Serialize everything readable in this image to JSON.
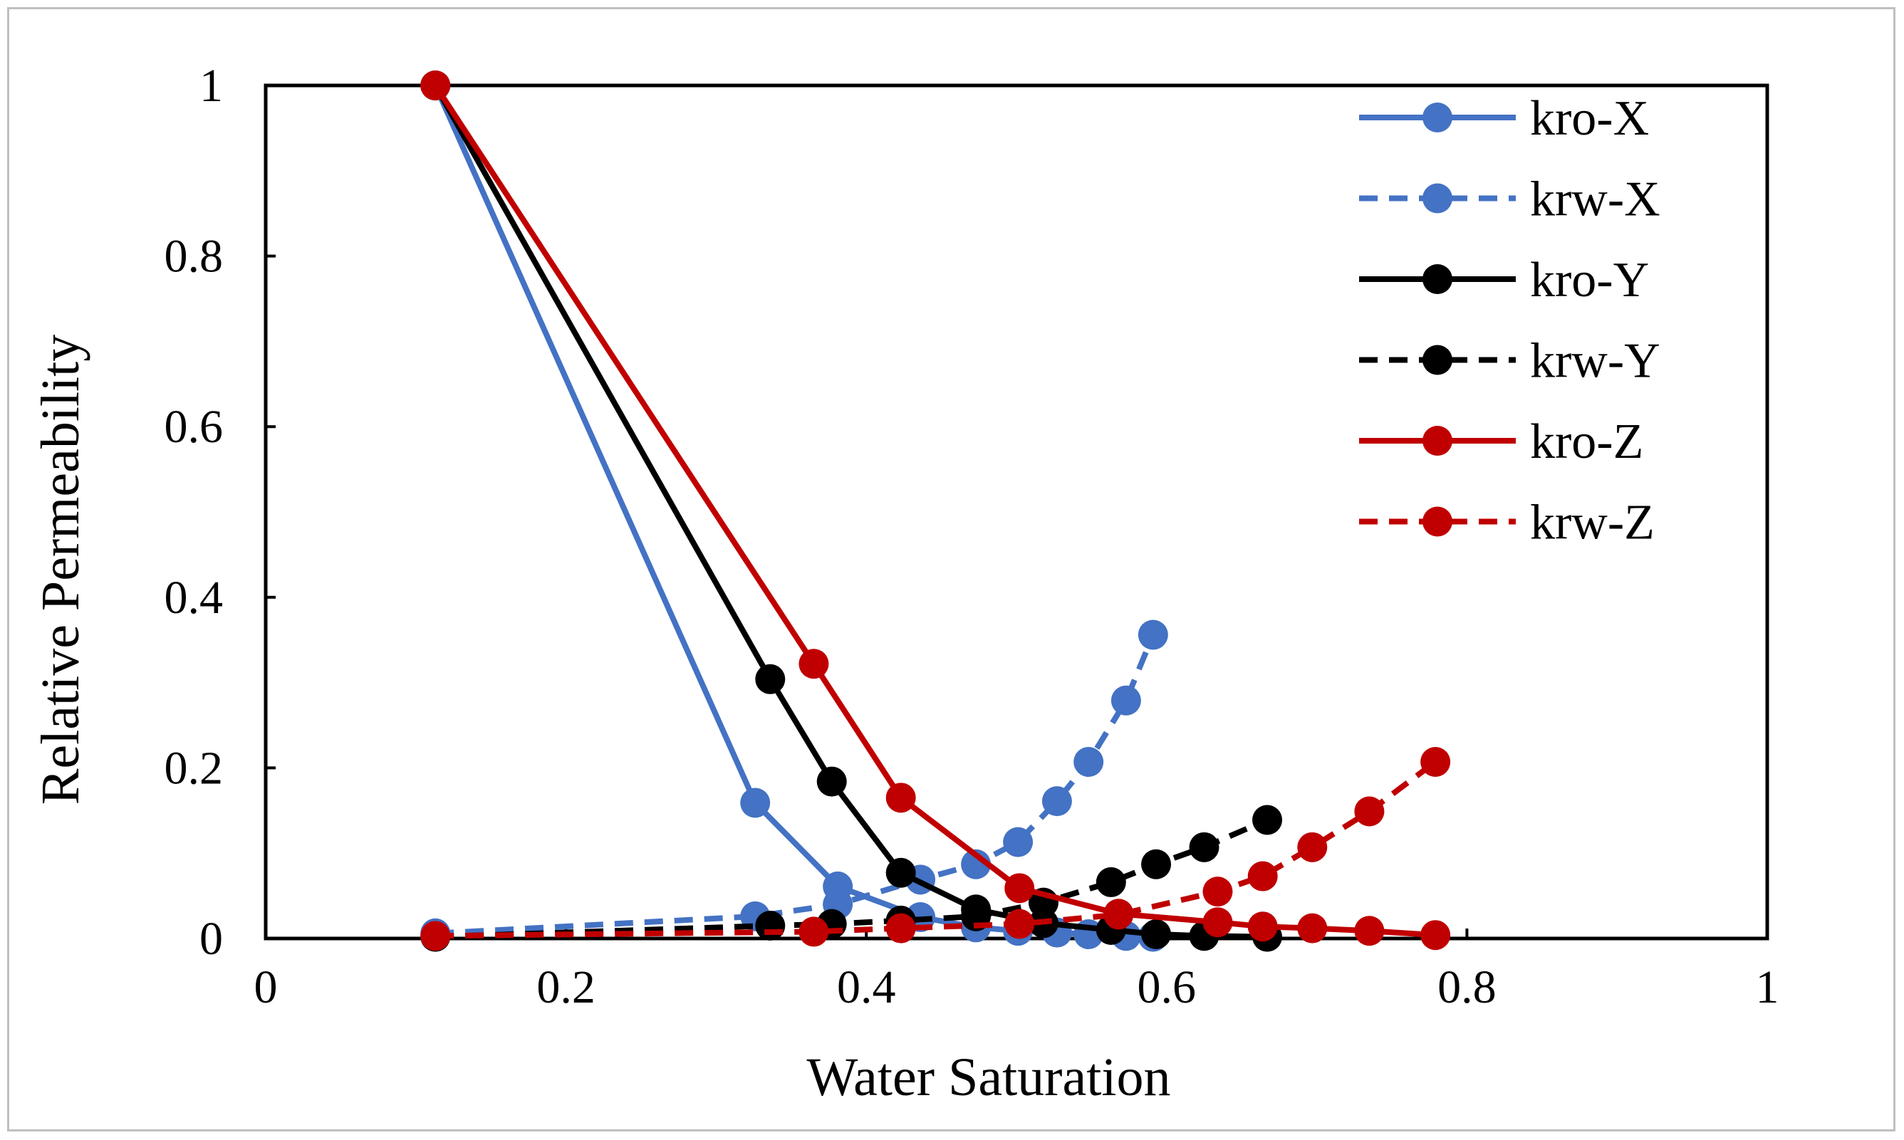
{
  "chart_data": {
    "type": "line",
    "title": "",
    "xlabel": "Water Saturation",
    "ylabel": "Relative Permeability",
    "xlim": [
      0,
      1
    ],
    "ylim": [
      0,
      1
    ],
    "xticks": [
      0,
      0.2,
      0.4,
      0.6,
      0.8,
      1
    ],
    "yticks": [
      0,
      0.2,
      0.4,
      0.6,
      0.8,
      1
    ],
    "xtick_labels": [
      "0",
      "0.2",
      "0.4",
      "0.6",
      "0.8",
      "1"
    ],
    "ytick_labels": [
      "0",
      "0.2",
      "0.4",
      "0.6",
      "0.8",
      "1"
    ],
    "grid": false,
    "legend_position": "top-right",
    "series": [
      {
        "name": "kro-X",
        "color": "#4472c4",
        "dash": "solid",
        "x": [
          0.113,
          0.326,
          0.381,
          0.436,
          0.473,
          0.501,
          0.527,
          0.548,
          0.573,
          0.591
        ],
        "y": [
          1.0,
          0.159,
          0.061,
          0.025,
          0.013,
          0.009,
          0.007,
          0.005,
          0.003,
          0.002
        ]
      },
      {
        "name": "krw-X",
        "color": "#4472c4",
        "dash": "dashed",
        "x": [
          0.113,
          0.326,
          0.381,
          0.436,
          0.473,
          0.501,
          0.527,
          0.548,
          0.573,
          0.591
        ],
        "y": [
          0.006,
          0.026,
          0.04,
          0.069,
          0.087,
          0.113,
          0.161,
          0.207,
          0.279,
          0.356
        ]
      },
      {
        "name": "kro-Y",
        "color": "#000000",
        "dash": "solid",
        "x": [
          0.113,
          0.336,
          0.377,
          0.423,
          0.473,
          0.518,
          0.563,
          0.593,
          0.625,
          0.667
        ],
        "y": [
          1.0,
          0.304,
          0.184,
          0.077,
          0.034,
          0.018,
          0.01,
          0.005,
          0.003,
          0.002
        ]
      },
      {
        "name": "krw-Y",
        "color": "#000000",
        "dash": "dashed",
        "x": [
          0.113,
          0.336,
          0.377,
          0.423,
          0.473,
          0.518,
          0.563,
          0.593,
          0.625,
          0.667
        ],
        "y": [
          0.002,
          0.015,
          0.017,
          0.021,
          0.026,
          0.042,
          0.066,
          0.087,
          0.107,
          0.139
        ]
      },
      {
        "name": "kro-Z",
        "color": "#c00000",
        "dash": "solid",
        "x": [
          0.113,
          0.365,
          0.423,
          0.502,
          0.568,
          0.634,
          0.664,
          0.697,
          0.735,
          0.779
        ],
        "y": [
          1.0,
          0.322,
          0.165,
          0.059,
          0.029,
          0.019,
          0.014,
          0.012,
          0.009,
          0.004
        ]
      },
      {
        "name": "krw-Z",
        "color": "#c00000",
        "dash": "dashed",
        "x": [
          0.113,
          0.365,
          0.423,
          0.502,
          0.568,
          0.634,
          0.664,
          0.697,
          0.735,
          0.779
        ],
        "y": [
          0.003,
          0.008,
          0.012,
          0.017,
          0.028,
          0.055,
          0.073,
          0.107,
          0.149,
          0.207
        ]
      }
    ]
  }
}
